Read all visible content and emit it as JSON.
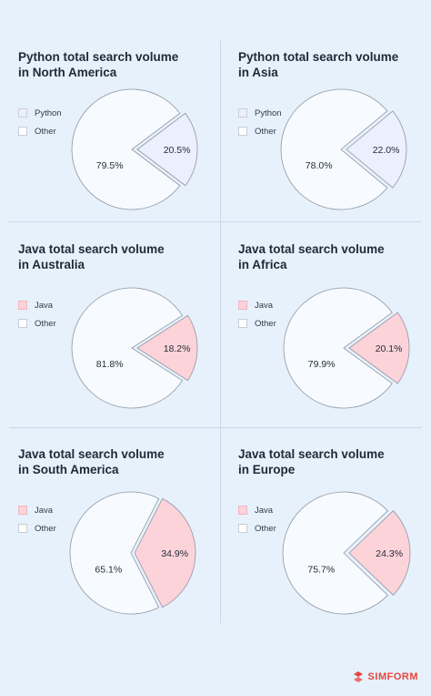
{
  "brand": {
    "name": "SIMFORM",
    "color": "#e8453c"
  },
  "colors": {
    "other": "#f7fafe",
    "python": "#eceffd",
    "java": "#fcd3d9",
    "stroke": "#8f96a3"
  },
  "chart_data": [
    {
      "type": "pie",
      "title_line1": "Python total search volume",
      "title_line2": "in North America",
      "legend": [
        "Python",
        "Other"
      ],
      "slices": [
        {
          "label": "Python",
          "value": 20.5,
          "display": "20.5%"
        },
        {
          "label": "Other",
          "value": 79.5,
          "display": "79.5%"
        }
      ]
    },
    {
      "type": "pie",
      "title_line1": "Python total search volume",
      "title_line2": "in Asia",
      "legend": [
        "Python",
        "Other"
      ],
      "slices": [
        {
          "label": "Python",
          "value": 22.0,
          "display": "22.0%"
        },
        {
          "label": "Other",
          "value": 78.0,
          "display": "78.0%"
        }
      ]
    },
    {
      "type": "pie",
      "title_line1": "Java total search volume",
      "title_line2": "in Australia",
      "legend": [
        "Java",
        "Other"
      ],
      "slices": [
        {
          "label": "Java",
          "value": 18.2,
          "display": "18.2%"
        },
        {
          "label": "Other",
          "value": 81.8,
          "display": "81.8%"
        }
      ]
    },
    {
      "type": "pie",
      "title_line1": "Java total search volume",
      "title_line2": "in Africa",
      "legend": [
        "Java",
        "Other"
      ],
      "slices": [
        {
          "label": "Java",
          "value": 20.1,
          "display": "20.1%"
        },
        {
          "label": "Other",
          "value": 79.9,
          "display": "79.9%"
        }
      ]
    },
    {
      "type": "pie",
      "title_line1": "Java total search volume",
      "title_line2": "in South America",
      "legend": [
        "Java",
        "Other"
      ],
      "slices": [
        {
          "label": "Java",
          "value": 34.9,
          "display": "34.9%"
        },
        {
          "label": "Other",
          "value": 65.1,
          "display": "65.1%"
        }
      ]
    },
    {
      "type": "pie",
      "title_line1": "Java total search volume",
      "title_line2": "in Europe",
      "legend": [
        "Java",
        "Other"
      ],
      "slices": [
        {
          "label": "Java",
          "value": 24.3,
          "display": "24.3%"
        },
        {
          "label": "Other",
          "value": 75.7,
          "display": "75.7%"
        }
      ]
    }
  ]
}
